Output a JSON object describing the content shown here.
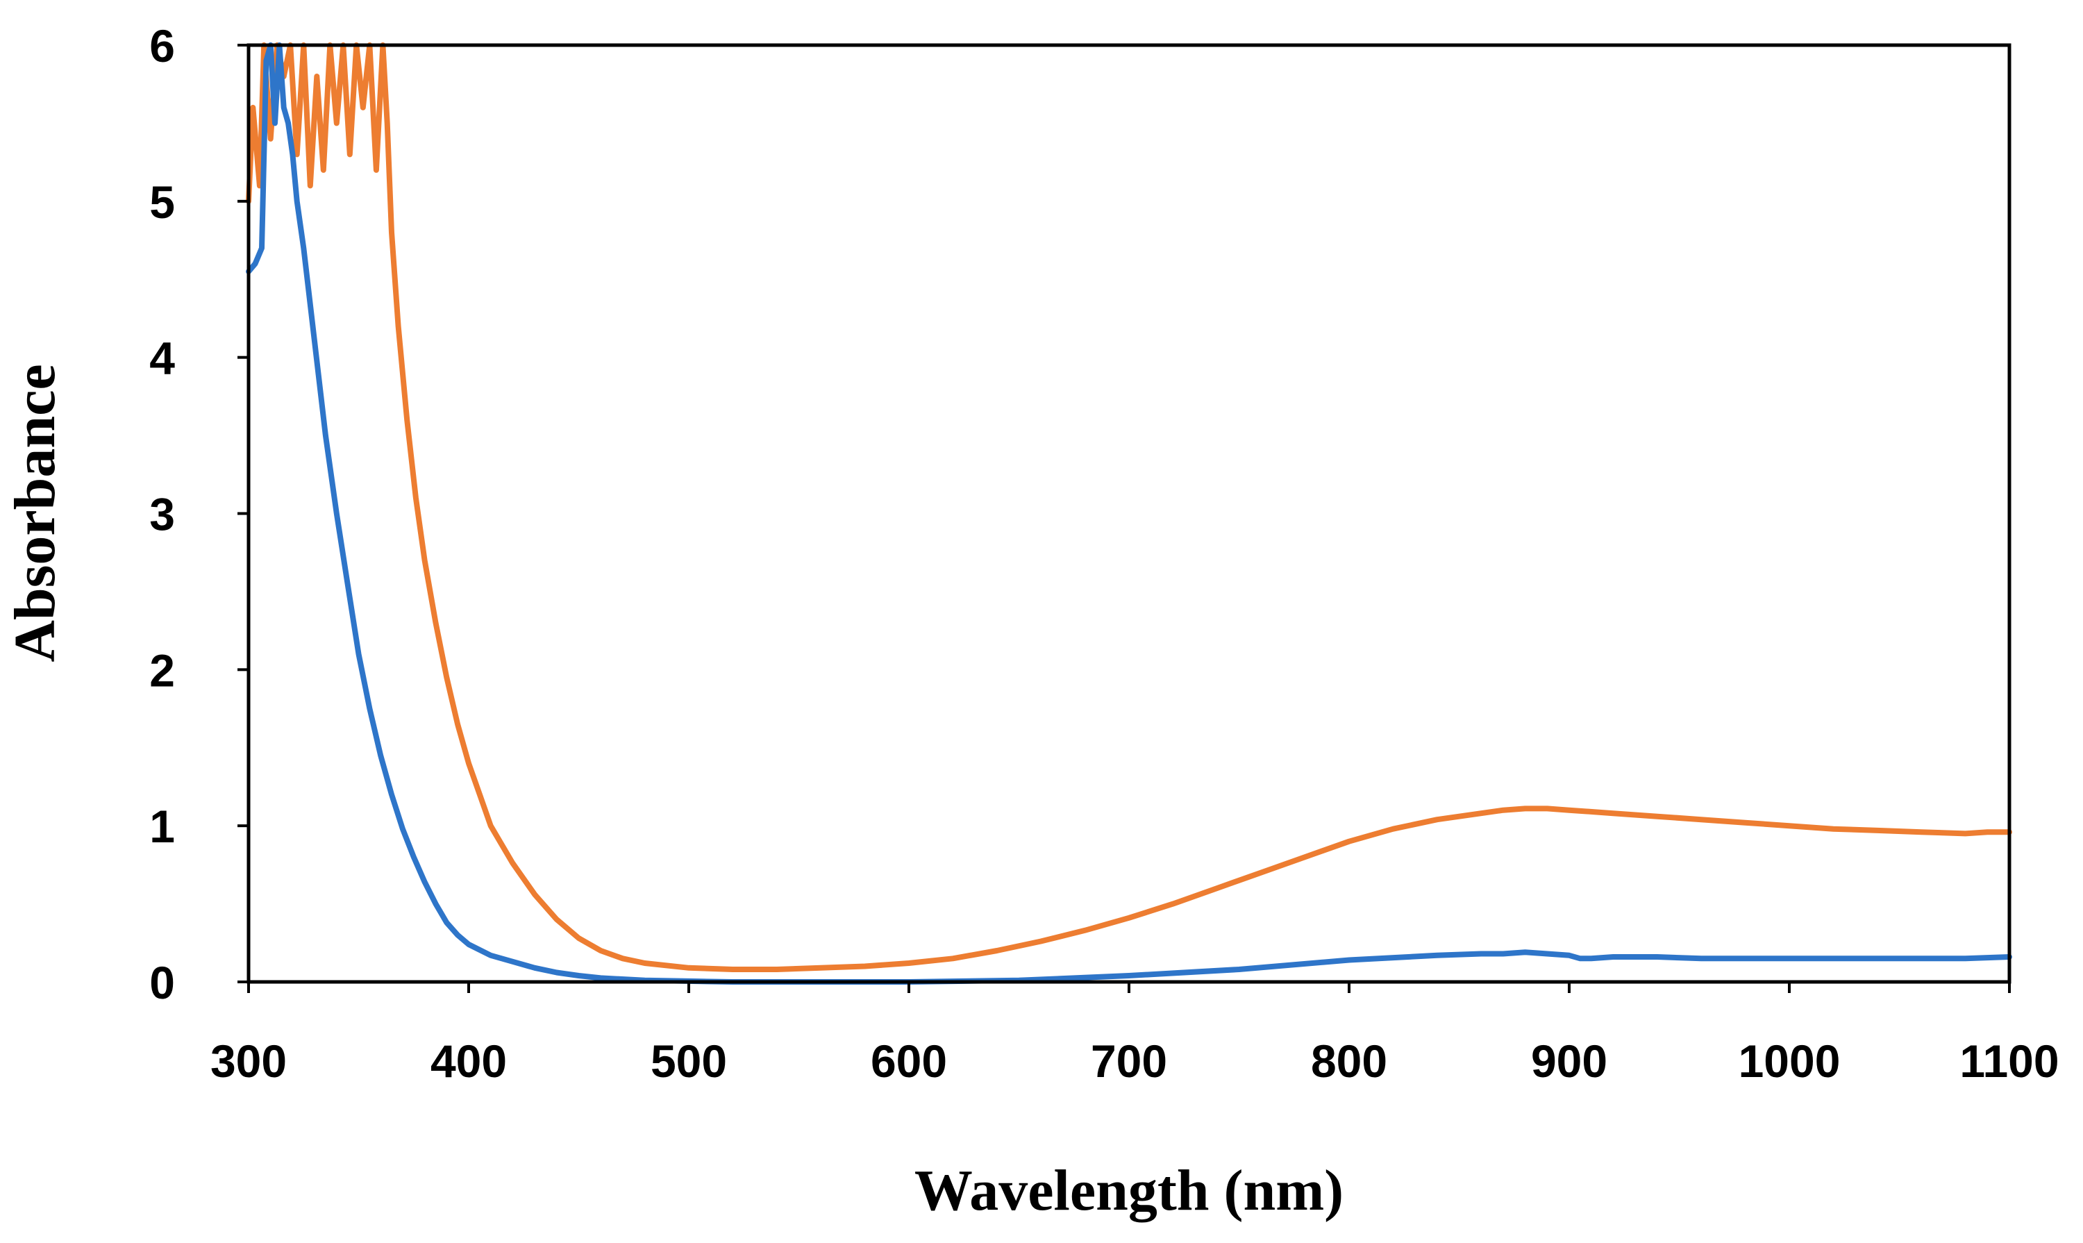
{
  "chart_data": {
    "type": "line",
    "title": "",
    "xlabel": "Wavelength (nm)",
    "ylabel": "Absorbance",
    "xlim": [
      300,
      1100
    ],
    "ylim": [
      0,
      6
    ],
    "xticks": [
      300,
      400,
      500,
      600,
      700,
      800,
      900,
      1000,
      1100
    ],
    "yticks": [
      0,
      1,
      2,
      3,
      4,
      5,
      6
    ],
    "grid": false,
    "legend": "none",
    "series": [
      {
        "name": "orange",
        "color": "#ED7D31",
        "x": [
          300,
          302,
          305,
          307,
          310,
          313,
          316,
          319,
          322,
          325,
          328,
          331,
          334,
          337,
          340,
          343,
          346,
          349,
          352,
          355,
          358,
          361,
          363,
          365,
          368,
          372,
          376,
          380,
          385,
          390,
          395,
          400,
          405,
          410,
          420,
          430,
          440,
          450,
          460,
          470,
          480,
          500,
          520,
          540,
          560,
          580,
          600,
          620,
          640,
          660,
          680,
          700,
          720,
          740,
          760,
          780,
          800,
          820,
          840,
          860,
          870,
          880,
          890,
          900,
          920,
          940,
          960,
          980,
          1000,
          1020,
          1040,
          1060,
          1080,
          1090,
          1100
        ],
        "y": [
          5.0,
          5.6,
          5.1,
          6.0,
          5.4,
          6.0,
          5.8,
          6.0,
          5.3,
          6.0,
          5.1,
          5.8,
          5.2,
          6.0,
          5.5,
          6.0,
          5.3,
          6.0,
          5.6,
          6.0,
          5.2,
          6.0,
          5.5,
          4.8,
          4.2,
          3.6,
          3.1,
          2.7,
          2.3,
          1.95,
          1.65,
          1.4,
          1.2,
          1.0,
          0.76,
          0.56,
          0.4,
          0.28,
          0.2,
          0.15,
          0.12,
          0.09,
          0.08,
          0.08,
          0.09,
          0.1,
          0.12,
          0.15,
          0.2,
          0.26,
          0.33,
          0.41,
          0.5,
          0.6,
          0.7,
          0.8,
          0.9,
          0.98,
          1.04,
          1.08,
          1.1,
          1.11,
          1.11,
          1.1,
          1.08,
          1.06,
          1.04,
          1.02,
          1.0,
          0.98,
          0.97,
          0.96,
          0.95,
          0.96,
          0.96
        ]
      },
      {
        "name": "blue",
        "color": "#2E75C9",
        "x": [
          300,
          303,
          306,
          308,
          310,
          312,
          314,
          316,
          318,
          320,
          322,
          325,
          330,
          335,
          340,
          345,
          350,
          355,
          360,
          365,
          370,
          375,
          380,
          385,
          390,
          395,
          400,
          410,
          420,
          430,
          440,
          450,
          460,
          480,
          500,
          520,
          550,
          600,
          650,
          700,
          750,
          800,
          840,
          860,
          870,
          880,
          890,
          900,
          905,
          910,
          920,
          940,
          960,
          980,
          1000,
          1020,
          1040,
          1060,
          1080,
          1100
        ],
        "y": [
          4.55,
          4.6,
          4.7,
          5.9,
          6.0,
          5.5,
          6.0,
          5.6,
          5.5,
          5.3,
          5.0,
          4.7,
          4.1,
          3.5,
          3.0,
          2.55,
          2.1,
          1.75,
          1.45,
          1.2,
          0.98,
          0.8,
          0.64,
          0.5,
          0.38,
          0.3,
          0.24,
          0.17,
          0.13,
          0.09,
          0.06,
          0.04,
          0.025,
          0.01,
          0.005,
          0.0,
          0.0,
          0.0,
          0.01,
          0.04,
          0.08,
          0.14,
          0.17,
          0.18,
          0.18,
          0.19,
          0.18,
          0.17,
          0.15,
          0.15,
          0.16,
          0.16,
          0.15,
          0.15,
          0.15,
          0.15,
          0.15,
          0.15,
          0.15,
          0.16
        ]
      }
    ]
  }
}
